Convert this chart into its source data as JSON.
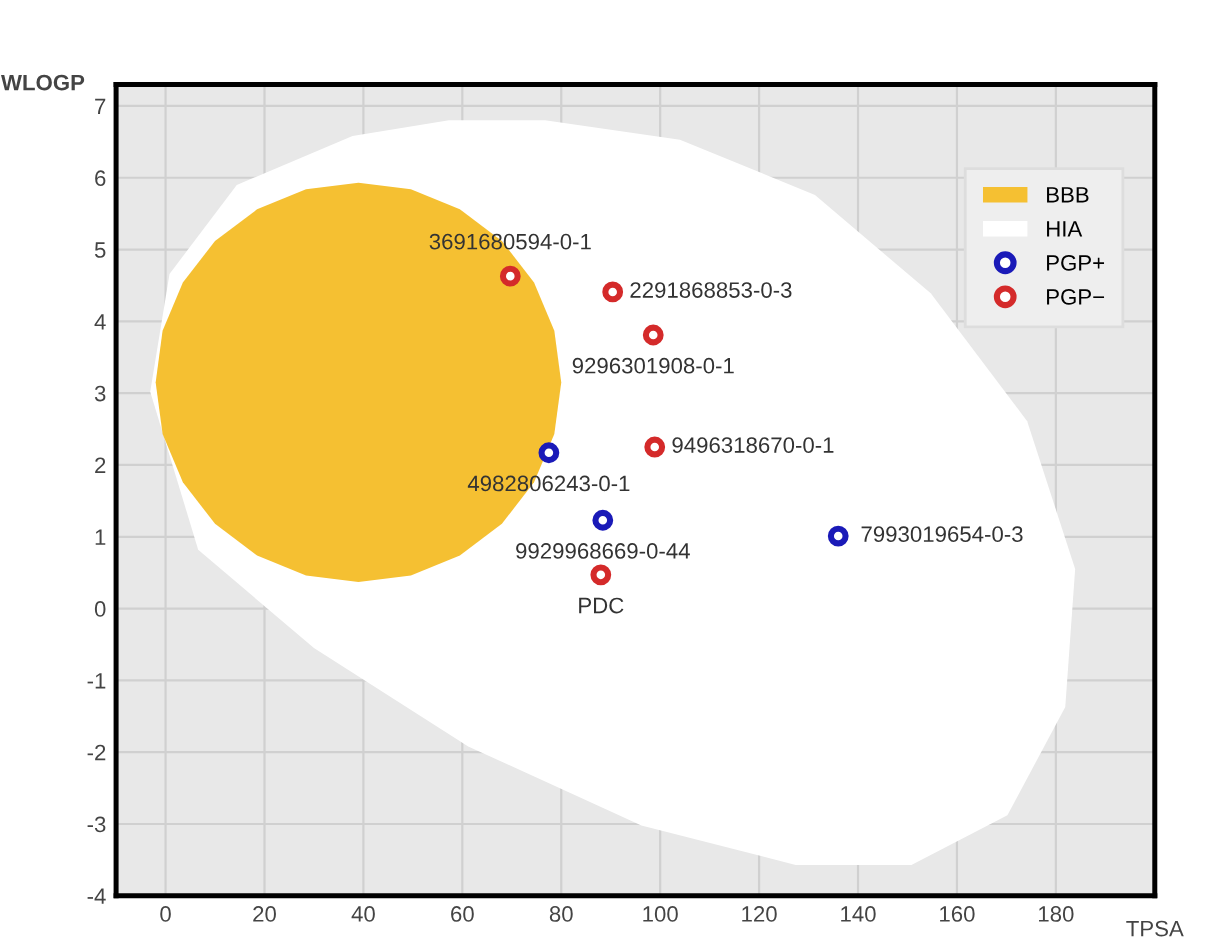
{
  "chart_data": {
    "type": "scatter",
    "xlabel": "TPSA",
    "ylabel": "WLOGP",
    "xlim": [
      -10,
      200
    ],
    "ylim": [
      -4,
      7.3
    ],
    "xticks": [
      0,
      20,
      40,
      60,
      80,
      100,
      120,
      140,
      160,
      180
    ],
    "yticks": [
      -4,
      -3,
      -2,
      -1,
      0,
      1,
      2,
      3,
      4,
      5,
      6,
      7
    ],
    "grid": true,
    "legend": "top right",
    "series": [
      {
        "name": "BBB",
        "type": "area",
        "color": "#f5c032",
        "x": [
          80,
          78.6,
          74.5,
          68,
          59.5,
          49.6,
          39,
          28.4,
          18.5,
          10,
          3.5,
          -0.6,
          -2,
          -0.6,
          3.5,
          10,
          18.5,
          28.4,
          39,
          49.6,
          59.5,
          68,
          74.5,
          78.6
        ],
        "values": [
          3.15,
          3.87,
          4.54,
          5.12,
          5.56,
          5.84,
          5.93,
          5.84,
          5.56,
          5.12,
          4.54,
          3.87,
          3.15,
          2.43,
          1.76,
          1.18,
          0.74,
          0.46,
          0.37,
          0.46,
          0.74,
          1.18,
          1.76,
          2.43
        ]
      },
      {
        "name": "HIA",
        "type": "area",
        "color": "#ffffff",
        "x": [
          76.7,
          104.0,
          131.3,
          154.7,
          174.2,
          183.9,
          181.9,
          170.2,
          150.8,
          127.4,
          96.2,
          61.2,
          30.0,
          6.6,
          -3.1,
          0.8,
          14.4,
          37.8,
          57.3
        ],
        "values": [
          6.8,
          6.53,
          5.76,
          4.39,
          2.61,
          0.55,
          -1.37,
          -2.88,
          -3.57,
          -3.57,
          -3.02,
          -1.92,
          -0.55,
          0.82,
          3.02,
          4.66,
          5.9,
          6.58,
          6.8
        ]
      },
      {
        "name": "PGP+",
        "color": "#1a1ab8",
        "marker": "circle",
        "x": [
          77.5,
          88.4,
          136
        ],
        "values": [
          2.17,
          1.23,
          1.01
        ]
      },
      {
        "name": "PGP−",
        "color": "#d42a2a",
        "marker": "circle",
        "x": [
          69.7,
          90.4,
          98.6,
          98.9,
          88
        ],
        "values": [
          4.63,
          4.41,
          3.81,
          2.25,
          0.47
        ]
      }
    ],
    "annotations": [
      {
        "text": "3691680594-0-1",
        "x": 69.7,
        "y": 4.63
      },
      {
        "text": "2291868853-0-3",
        "x": 90.4,
        "y": 4.41
      },
      {
        "text": "9296301908-0-1",
        "x": 98.6,
        "y": 3.81
      },
      {
        "text": "9496318670-0-1",
        "x": 98.9,
        "y": 2.25
      },
      {
        "text": "4982806243-0-1",
        "x": 77.5,
        "y": 2.17
      },
      {
        "text": "9929968669-0-44",
        "x": 88.4,
        "y": 1.23
      },
      {
        "text": "7993019654-0-3",
        "x": 136,
        "y": 1.01
      },
      {
        "text": "PDC",
        "x": 88,
        "y": 0.47
      }
    ]
  }
}
